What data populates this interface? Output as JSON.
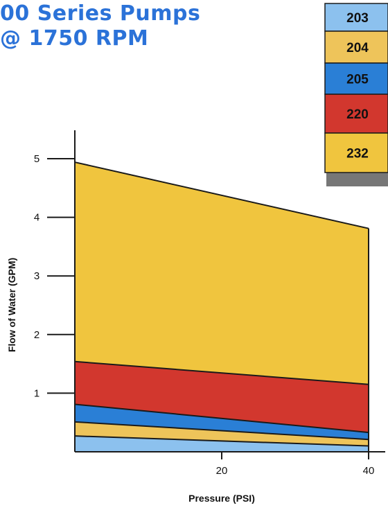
{
  "header": {
    "line1": "00 Series Pumps",
    "line2": "@ 1750 RPM"
  },
  "chart_data": {
    "type": "area",
    "xlabel": "Pressure (PSI)",
    "ylabel": "Flow of Water (GPM)",
    "xlim": [
      0,
      40
    ],
    "ylim": [
      0,
      5
    ],
    "x_ticks": [
      20,
      40
    ],
    "y_ticks": [
      1,
      2,
      3,
      4,
      5
    ],
    "grid": false,
    "legend_position": "top-right",
    "x": [
      0,
      40
    ],
    "series": [
      {
        "name": "203",
        "color": "#8cc1ee",
        "values": [
          0.27,
          0.1
        ]
      },
      {
        "name": "204",
        "color": "#eec45a",
        "values": [
          0.51,
          0.21
        ]
      },
      {
        "name": "205",
        "color": "#2a7fd6",
        "values": [
          0.81,
          0.33
        ]
      },
      {
        "name": "220",
        "color": "#d2372e",
        "values": [
          1.54,
          1.15
        ]
      },
      {
        "name": "232",
        "color": "#f0c53e",
        "values": [
          4.94,
          3.81
        ]
      }
    ]
  }
}
